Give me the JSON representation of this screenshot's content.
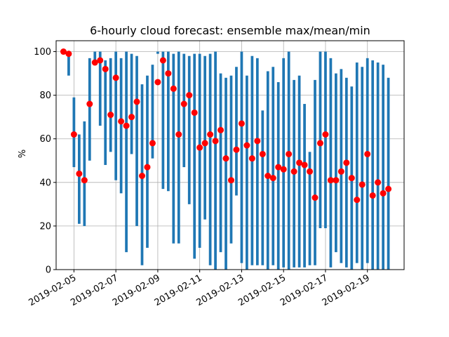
{
  "chart_data": {
    "type": "bar",
    "title": "6-hourly cloud forecast: ensemble max/mean/min",
    "xlabel": "",
    "ylabel": "%",
    "ylim": [
      0,
      105
    ],
    "grid": true,
    "x_ticks": [
      "2019-02-05",
      "2019-02-07",
      "2019-02-09",
      "2019-02-11",
      "2019-02-13",
      "2019-02-15",
      "2019-02-17",
      "2019-02-19"
    ],
    "y_ticks": [
      "0",
      "20",
      "40",
      "60",
      "80",
      "100"
    ],
    "colors": {
      "range_bar": "#1f77b4",
      "mean_marker": "#ff0000",
      "grid": "#b0b0b0"
    },
    "series": [
      {
        "name": "range",
        "style": "vertical bars from min to max",
        "x": [
          "2019-02-04 12:00",
          "2019-02-04 18:00",
          "2019-02-05 00:00",
          "2019-02-05 06:00",
          "2019-02-05 12:00",
          "2019-02-05 18:00",
          "2019-02-06 00:00",
          "2019-02-06 06:00",
          "2019-02-06 12:00",
          "2019-02-06 18:00",
          "2019-02-07 00:00",
          "2019-02-07 06:00",
          "2019-02-07 12:00",
          "2019-02-07 18:00",
          "2019-02-08 00:00",
          "2019-02-08 06:00",
          "2019-02-08 12:00",
          "2019-02-08 18:00",
          "2019-02-09 00:00",
          "2019-02-09 06:00",
          "2019-02-09 12:00",
          "2019-02-09 18:00",
          "2019-02-10 00:00",
          "2019-02-10 06:00",
          "2019-02-10 12:00",
          "2019-02-10 18:00",
          "2019-02-11 00:00",
          "2019-02-11 06:00",
          "2019-02-11 12:00",
          "2019-02-11 18:00",
          "2019-02-12 00:00",
          "2019-02-12 06:00",
          "2019-02-12 12:00",
          "2019-02-12 18:00",
          "2019-02-13 00:00",
          "2019-02-13 06:00",
          "2019-02-13 12:00",
          "2019-02-13 18:00",
          "2019-02-14 00:00",
          "2019-02-14 06:00",
          "2019-02-14 12:00",
          "2019-02-14 18:00",
          "2019-02-15 00:00",
          "2019-02-15 06:00",
          "2019-02-15 12:00",
          "2019-02-15 18:00",
          "2019-02-16 00:00",
          "2019-02-16 06:00",
          "2019-02-16 12:00",
          "2019-02-16 18:00",
          "2019-02-17 00:00",
          "2019-02-17 06:00",
          "2019-02-17 12:00",
          "2019-02-17 18:00",
          "2019-02-18 00:00",
          "2019-02-18 06:00",
          "2019-02-18 12:00",
          "2019-02-18 18:00",
          "2019-02-19 00:00",
          "2019-02-19 06:00",
          "2019-02-19 12:00",
          "2019-02-19 18:00",
          "2019-02-20 00:00"
        ],
        "min": [
          100,
          89,
          47,
          21,
          20,
          50,
          95,
          66,
          48,
          54,
          41,
          35,
          8,
          53,
          20,
          2,
          10,
          51,
          99,
          37,
          36,
          12,
          12,
          47,
          30,
          5,
          10,
          23,
          2,
          0,
          8,
          0,
          12,
          34,
          3,
          0,
          2,
          2,
          2,
          0,
          2,
          0,
          1,
          0,
          1,
          1,
          1,
          2,
          2,
          19,
          19,
          1,
          8,
          3,
          1,
          0,
          3,
          0,
          3,
          0,
          0,
          0,
          0
        ],
        "max": [
          100,
          99,
          79,
          62,
          68,
          97,
          100,
          100,
          96,
          97,
          100,
          97,
          100,
          99,
          98,
          85,
          89,
          94,
          100,
          100,
          100,
          99,
          100,
          99,
          98,
          99,
          99,
          98,
          99,
          100,
          90,
          88,
          89,
          93,
          100,
          89,
          98,
          97,
          73,
          91,
          93,
          86,
          97,
          100,
          87,
          89,
          76,
          54,
          87,
          100,
          100,
          97,
          90,
          92,
          88,
          84,
          95,
          93,
          97,
          96,
          95,
          94,
          88
        ]
      },
      {
        "name": "mean",
        "style": "red circle markers",
        "x": [
          "2019-02-04 12:00",
          "2019-02-04 18:00",
          "2019-02-05 00:00",
          "2019-02-05 06:00",
          "2019-02-05 12:00",
          "2019-02-05 18:00",
          "2019-02-06 00:00",
          "2019-02-06 06:00",
          "2019-02-06 12:00",
          "2019-02-06 18:00",
          "2019-02-07 00:00",
          "2019-02-07 06:00",
          "2019-02-07 12:00",
          "2019-02-07 18:00",
          "2019-02-08 00:00",
          "2019-02-08 06:00",
          "2019-02-08 12:00",
          "2019-02-08 18:00",
          "2019-02-09 00:00",
          "2019-02-09 06:00",
          "2019-02-09 12:00",
          "2019-02-09 18:00",
          "2019-02-10 00:00",
          "2019-02-10 06:00",
          "2019-02-10 12:00",
          "2019-02-10 18:00",
          "2019-02-11 00:00",
          "2019-02-11 06:00",
          "2019-02-11 12:00",
          "2019-02-11 18:00",
          "2019-02-12 00:00",
          "2019-02-12 06:00",
          "2019-02-12 12:00",
          "2019-02-12 18:00",
          "2019-02-13 00:00",
          "2019-02-13 06:00",
          "2019-02-13 12:00",
          "2019-02-13 18:00",
          "2019-02-14 00:00",
          "2019-02-14 06:00",
          "2019-02-14 12:00",
          "2019-02-14 18:00",
          "2019-02-15 00:00",
          "2019-02-15 06:00",
          "2019-02-15 12:00",
          "2019-02-15 18:00",
          "2019-02-16 00:00",
          "2019-02-16 06:00",
          "2019-02-16 12:00",
          "2019-02-16 18:00",
          "2019-02-17 00:00",
          "2019-02-17 06:00",
          "2019-02-17 12:00",
          "2019-02-17 18:00",
          "2019-02-18 00:00",
          "2019-02-18 06:00",
          "2019-02-18 12:00",
          "2019-02-18 18:00",
          "2019-02-19 00:00",
          "2019-02-19 06:00",
          "2019-02-19 12:00",
          "2019-02-19 18:00",
          "2019-02-20 00:00"
        ],
        "values": [
          100,
          99,
          62,
          44,
          41,
          76,
          95,
          96,
          92,
          71,
          88,
          68,
          66,
          70,
          77,
          43,
          47,
          58,
          86,
          96,
          90,
          83,
          62,
          76,
          80,
          72,
          56,
          58,
          62,
          59,
          64,
          51,
          41,
          55,
          67,
          57,
          51,
          59,
          53,
          43,
          42,
          47,
          46,
          53,
          45,
          49,
          48,
          45,
          33,
          58,
          62,
          41,
          41,
          45,
          49,
          42,
          32,
          39,
          53,
          34,
          40,
          35,
          37
        ]
      }
    ]
  }
}
